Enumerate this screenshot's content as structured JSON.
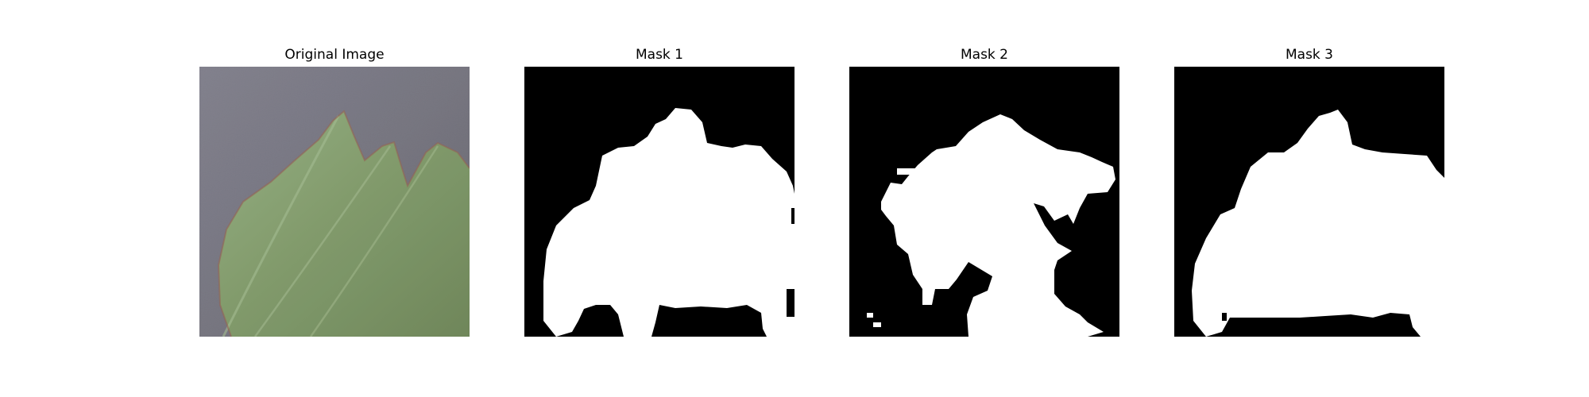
{
  "figure": {
    "panels": [
      {
        "title": "Original Image",
        "kind": "photo",
        "subject": "leaf-icon"
      },
      {
        "title": "Mask 1",
        "kind": "binary-mask"
      },
      {
        "title": "Mask 2",
        "kind": "binary-mask"
      },
      {
        "title": "Mask 3",
        "kind": "binary-mask"
      }
    ],
    "colors": {
      "background": "#ffffff",
      "mask_foreground": "#ffffff",
      "mask_background": "#000000",
      "photo_surface": "#6f6e78",
      "leaf_green": "#7f9a65"
    }
  }
}
